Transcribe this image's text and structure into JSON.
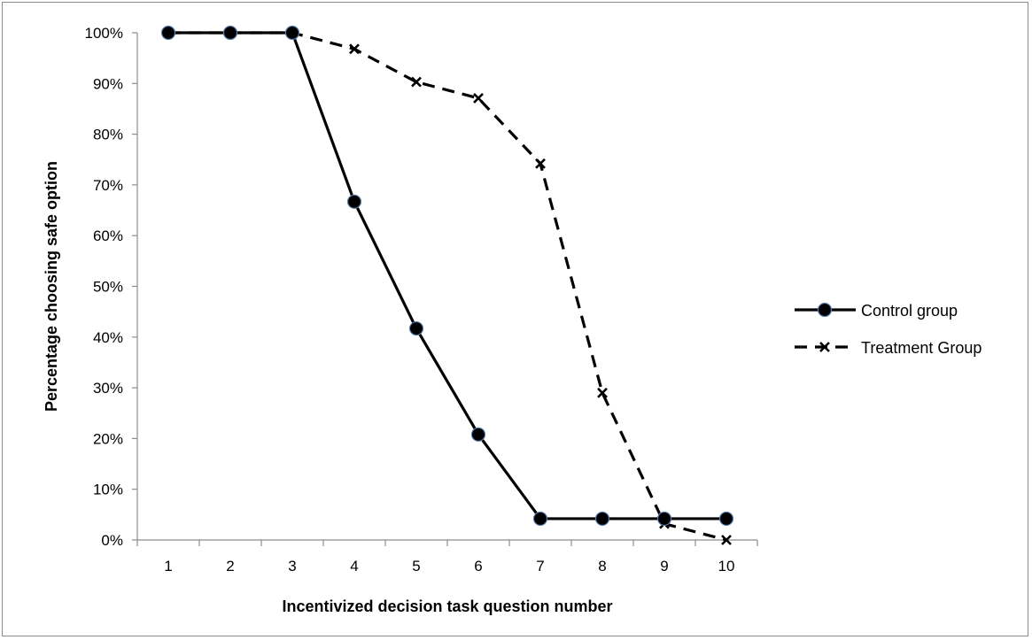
{
  "chart_data": {
    "type": "line",
    "title": "",
    "xlabel": "Incentivized decision task question number",
    "ylabel": "Percentage choosing  safe option",
    "categories": [
      "1",
      "2",
      "3",
      "4",
      "5",
      "6",
      "7",
      "8",
      "9",
      "10"
    ],
    "y_ticks": [
      "0%",
      "10%",
      "20%",
      "30%",
      "40%",
      "50%",
      "60%",
      "70%",
      "80%",
      "90%",
      "100%"
    ],
    "ylim": [
      0,
      100
    ],
    "grid": false,
    "legend_position": "right",
    "series": [
      {
        "name": "Control group",
        "values": [
          100,
          100,
          100,
          66.7,
          41.7,
          20.8,
          4.2,
          4.2,
          4.2,
          4.2
        ],
        "line_style": "solid",
        "marker": "circle",
        "color": "#000000"
      },
      {
        "name": "Treatment Group",
        "values": [
          100,
          100,
          100,
          96.8,
          90.3,
          87.1,
          74.2,
          29.0,
          3.2,
          0
        ],
        "line_style": "dashed",
        "marker": "x",
        "color": "#000000"
      }
    ]
  }
}
